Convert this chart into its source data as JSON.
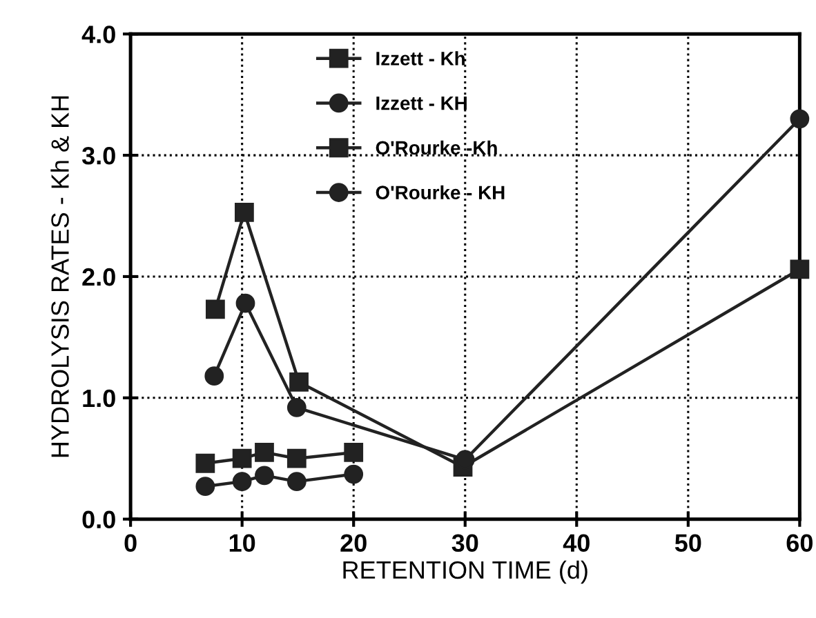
{
  "chart_data": {
    "type": "line",
    "xlabel": "RETENTION TIME (d)",
    "ylabel": "HYDROLYSIS RATES - Kh & KH",
    "xlim": [
      0,
      60
    ],
    "xticks": [
      0,
      10,
      20,
      30,
      40,
      50,
      60
    ],
    "ylim": [
      0,
      4
    ],
    "yticks": [
      {
        "value": 0,
        "label": "0.0"
      },
      {
        "value": 1,
        "label": "1.0"
      },
      {
        "value": 2,
        "label": "2.0"
      },
      {
        "value": 3,
        "label": "3.0"
      },
      {
        "value": 4,
        "label": "4.0"
      }
    ],
    "grid": true,
    "legend": "top",
    "line_style": "solid",
    "series": [
      {
        "name": "Izzett - Kh",
        "color": "#222222",
        "marker": "square",
        "x": [
          6.7,
          10,
          12,
          14.9,
          20
        ],
        "values": [
          0.46,
          0.5,
          0.55,
          0.5,
          0.55
        ]
      },
      {
        "name": "Izzett - KH",
        "color": "#222222",
        "marker": "circle",
        "x": [
          6.7,
          10,
          12,
          14.9,
          20
        ],
        "values": [
          0.27,
          0.31,
          0.36,
          0.31,
          0.37
        ]
      },
      {
        "name": "O'Rourke -Kh",
        "color": "#222222",
        "marker": "square",
        "x": [
          7.6,
          10.2,
          15.1,
          29.8,
          60
        ],
        "values": [
          1.73,
          2.53,
          1.13,
          0.43,
          2.06
        ]
      },
      {
        "name": "O'Rourke - KH",
        "color": "#222222",
        "marker": "circle",
        "x": [
          7.5,
          10.3,
          14.9,
          30,
          60
        ],
        "values": [
          1.18,
          1.78,
          0.92,
          0.49,
          3.3
        ]
      }
    ]
  }
}
